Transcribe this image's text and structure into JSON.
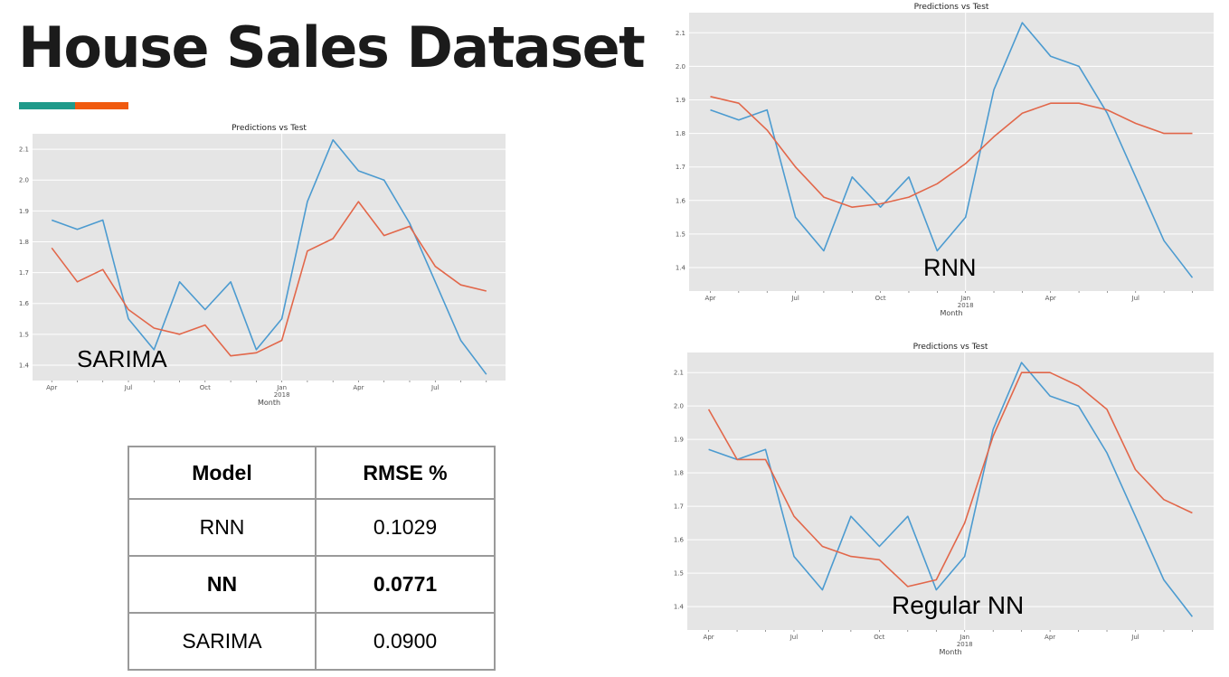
{
  "page": {
    "title": "House Sales Dataset"
  },
  "colors": {
    "accent_teal": "#1f9a8a",
    "accent_orange": "#f05a0f",
    "test_line": "#4c9bd0",
    "pred_line": "#e2674a",
    "plot_bg": "#e5e5e5"
  },
  "chart_data": [
    {
      "id": "sarima",
      "type": "line",
      "title": "Predictions vs Test",
      "xlabel": "Month",
      "ylabel": "",
      "caption": "SARIMA",
      "x": [
        "2017-04",
        "2017-05",
        "2017-06",
        "2017-07",
        "2017-08",
        "2017-09",
        "2017-10",
        "2017-11",
        "2017-12",
        "2018-01",
        "2018-02",
        "2018-03",
        "2018-04",
        "2018-05",
        "2018-06",
        "2018-07",
        "2018-08",
        "2018-09"
      ],
      "x_ticks": [
        {
          "label": "Apr",
          "i": 0
        },
        {
          "label": "Jul",
          "i": 3
        },
        {
          "label": "Oct",
          "i": 6
        },
        {
          "label": "Jan",
          "sub": "2018",
          "i": 9
        },
        {
          "label": "Apr",
          "i": 12
        },
        {
          "label": "Jul",
          "i": 15
        }
      ],
      "ylim": [
        1.35,
        2.15
      ],
      "yticks": [
        "1.4",
        "1.5",
        "1.6",
        "1.7",
        "1.8",
        "1.9",
        "2.0",
        "2.1"
      ],
      "grid": true,
      "series": [
        {
          "values": [
            1.87,
            1.84,
            1.87,
            1.55,
            1.45,
            1.67,
            1.58,
            1.67,
            1.45,
            1.55,
            1.93,
            2.13,
            2.03,
            2.0,
            1.86,
            1.67,
            1.48,
            1.37
          ]
        },
        {
          "values": [
            1.78,
            1.67,
            1.71,
            1.58,
            1.52,
            1.5,
            1.53,
            1.43,
            1.44,
            1.48,
            1.77,
            1.81,
            1.93,
            1.82,
            1.85,
            1.72,
            1.66,
            1.64
          ]
        }
      ]
    },
    {
      "id": "rnn",
      "type": "line",
      "title": "Predictions vs Test",
      "xlabel": "Month",
      "ylabel": "",
      "caption": "RNN",
      "x": [
        "2017-04",
        "2017-05",
        "2017-06",
        "2017-07",
        "2017-08",
        "2017-09",
        "2017-10",
        "2017-11",
        "2017-12",
        "2018-01",
        "2018-02",
        "2018-03",
        "2018-04",
        "2018-05",
        "2018-06",
        "2018-07",
        "2018-08",
        "2018-09"
      ],
      "x_ticks": [
        {
          "label": "Apr",
          "i": 0
        },
        {
          "label": "Jul",
          "i": 3
        },
        {
          "label": "Oct",
          "i": 6
        },
        {
          "label": "Jan",
          "sub": "2018",
          "i": 9
        },
        {
          "label": "Apr",
          "i": 12
        },
        {
          "label": "Jul",
          "i": 15
        }
      ],
      "ylim": [
        1.33,
        2.16
      ],
      "yticks": [
        "1.4",
        "1.5",
        "1.6",
        "1.7",
        "1.8",
        "1.9",
        "2.0",
        "2.1"
      ],
      "grid": true,
      "series": [
        {
          "values": [
            1.87,
            1.84,
            1.87,
            1.55,
            1.45,
            1.67,
            1.58,
            1.67,
            1.45,
            1.55,
            1.93,
            2.13,
            2.03,
            2.0,
            1.86,
            1.67,
            1.48,
            1.37
          ]
        },
        {
          "values": [
            1.91,
            1.89,
            1.81,
            1.7,
            1.61,
            1.58,
            1.59,
            1.61,
            1.65,
            1.71,
            1.79,
            1.86,
            1.89,
            1.89,
            1.87,
            1.83,
            1.8,
            1.8
          ]
        }
      ]
    },
    {
      "id": "nn",
      "type": "line",
      "title": "Predictions vs Test",
      "xlabel": "Month",
      "ylabel": "",
      "caption": "Regular NN",
      "x": [
        "2017-04",
        "2017-05",
        "2017-06",
        "2017-07",
        "2017-08",
        "2017-09",
        "2017-10",
        "2017-11",
        "2017-12",
        "2018-01",
        "2018-02",
        "2018-03",
        "2018-04",
        "2018-05",
        "2018-06",
        "2018-07",
        "2018-08",
        "2018-09"
      ],
      "x_ticks": [
        {
          "label": "Apr",
          "i": 0
        },
        {
          "label": "Jul",
          "i": 3
        },
        {
          "label": "Oct",
          "i": 6
        },
        {
          "label": "Jan",
          "sub": "2018",
          "i": 9
        },
        {
          "label": "Apr",
          "i": 12
        },
        {
          "label": "Jul",
          "i": 15
        }
      ],
      "ylim": [
        1.33,
        2.16
      ],
      "yticks": [
        "1.4",
        "1.5",
        "1.6",
        "1.7",
        "1.8",
        "1.9",
        "2.0",
        "2.1"
      ],
      "grid": true,
      "series": [
        {
          "values": [
            1.87,
            1.84,
            1.87,
            1.55,
            1.45,
            1.67,
            1.58,
            1.67,
            1.45,
            1.55,
            1.93,
            2.13,
            2.03,
            2.0,
            1.86,
            1.67,
            1.48,
            1.37
          ]
        },
        {
          "values": [
            1.99,
            1.84,
            1.84,
            1.67,
            1.58,
            1.55,
            1.54,
            1.46,
            1.48,
            1.65,
            1.91,
            2.1,
            2.1,
            2.06,
            1.99,
            1.81,
            1.72,
            1.68
          ]
        }
      ]
    }
  ],
  "table": {
    "headers": [
      "Model",
      "RMSE %"
    ],
    "rows": [
      {
        "model": "RNN",
        "rmse": "0.1029"
      },
      {
        "model": "NN",
        "rmse": "0.0771"
      },
      {
        "model": "SARIMA",
        "rmse": "0.0900"
      }
    ]
  }
}
